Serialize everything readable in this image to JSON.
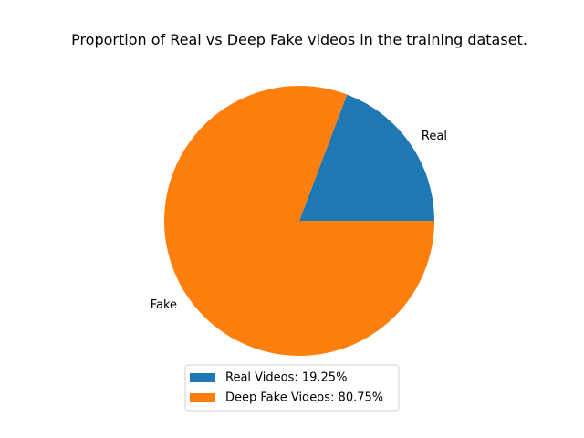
{
  "chart_data": {
    "type": "pie",
    "title": "Proportion of Real vs Deep Fake videos in the training dataset.",
    "slices": [
      {
        "label": "Real",
        "value": 19.25,
        "legend": "Real Videos: 19.25%",
        "color": "#1f77b4"
      },
      {
        "label": "Fake",
        "value": 80.75,
        "legend": "Deep Fake Videos: 80.75%",
        "color": "#ff7f0e"
      }
    ],
    "legend_position": "bottom-center"
  }
}
